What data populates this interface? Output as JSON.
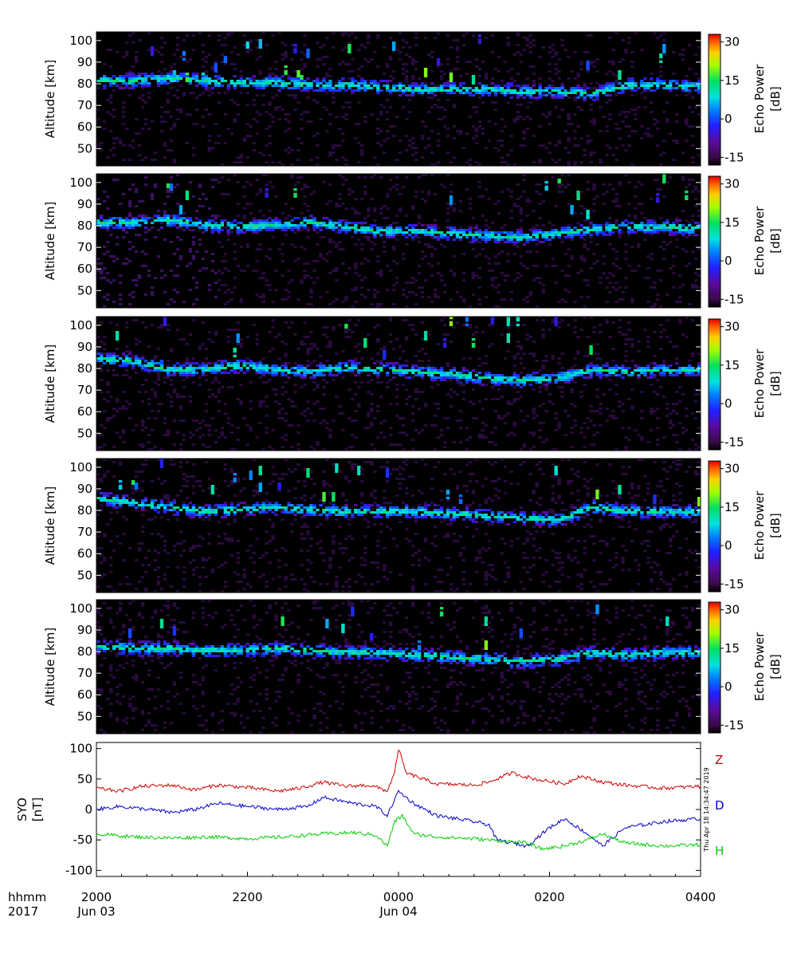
{
  "chart_data": [
    {
      "type": "heatmap",
      "ylabel": "Altitude [km]",
      "ylim": [
        42,
        104
      ],
      "yticks": [
        50,
        60,
        70,
        80,
        90,
        100
      ],
      "colorbar": {
        "label": "Echo Power [dB]",
        "range": [
          -18,
          33
        ],
        "ticks": [
          -15,
          0,
          15,
          30
        ]
      },
      "panels": 5,
      "echo_layer_km": [
        [
          82,
          82,
          83,
          82,
          81,
          81,
          80,
          80,
          79,
          78,
          78,
          78,
          77,
          77,
          76,
          80,
          80,
          79
        ],
        [
          82,
          82,
          83,
          81,
          80,
          81,
          82,
          80,
          78,
          78,
          77,
          76,
          75,
          77,
          79,
          80,
          80,
          79
        ],
        [
          85,
          84,
          80,
          80,
          82,
          80,
          79,
          81,
          80,
          79,
          78,
          76,
          75,
          76,
          80,
          79,
          80,
          80
        ],
        [
          86,
          84,
          82,
          80,
          81,
          82,
          81,
          80,
          80,
          80,
          79,
          78,
          77,
          76,
          82,
          80,
          80,
          80
        ],
        [
          83,
          82,
          82,
          81,
          81,
          82,
          81,
          80,
          80,
          79,
          78,
          77,
          76,
          77,
          80,
          79,
          80,
          80
        ]
      ]
    },
    {
      "type": "line",
      "ylabel": "SYO [nT]",
      "ylim": [
        -110,
        110
      ],
      "yticks": [
        -100,
        -50,
        0,
        50,
        100
      ],
      "series": [
        {
          "name": "Z",
          "color": "#cc0000",
          "x_hours": [
            20.0,
            20.3,
            20.6,
            21.0,
            21.3,
            21.6,
            22.0,
            22.4,
            22.7,
            23.0,
            23.3,
            23.6,
            23.75,
            23.85,
            23.95,
            24.0,
            24.1,
            24.5,
            25.0,
            25.2,
            25.5,
            25.8,
            26.2,
            26.4,
            26.7,
            27.0,
            27.5,
            28.0
          ],
          "values": [
            35,
            30,
            38,
            40,
            32,
            40,
            36,
            30,
            35,
            45,
            38,
            40,
            35,
            30,
            60,
            100,
            60,
            42,
            40,
            45,
            60,
            50,
            42,
            55,
            45,
            40,
            35,
            38
          ]
        },
        {
          "name": "D",
          "color": "#0000cc",
          "x_hours": [
            20.0,
            20.3,
            20.7,
            21.0,
            21.3,
            21.6,
            22.0,
            22.4,
            22.8,
            23.0,
            23.4,
            23.7,
            23.85,
            24.0,
            24.2,
            24.5,
            25.0,
            25.2,
            25.3,
            25.5,
            25.7,
            26.0,
            26.2,
            26.5,
            26.7,
            27.0,
            27.5,
            28.0
          ],
          "values": [
            0,
            5,
            0,
            -5,
            0,
            10,
            5,
            0,
            5,
            20,
            10,
            5,
            -10,
            30,
            10,
            -10,
            -20,
            -25,
            -50,
            -55,
            -60,
            -30,
            -15,
            -40,
            -60,
            -30,
            -20,
            -15
          ]
        },
        {
          "name": "H",
          "color": "#00cc00",
          "x_hours": [
            20.0,
            20.5,
            21.0,
            21.5,
            22.0,
            22.5,
            23.0,
            23.4,
            23.7,
            23.85,
            23.95,
            24.05,
            24.2,
            24.5,
            25.0,
            25.4,
            25.7,
            25.9,
            26.2,
            26.5,
            26.7,
            27.0,
            27.5,
            28.0
          ],
          "values": [
            -40,
            -45,
            -47,
            -45,
            -48,
            -45,
            -40,
            -38,
            -42,
            -60,
            -20,
            -10,
            -40,
            -45,
            -48,
            -52,
            -55,
            -65,
            -60,
            -50,
            -40,
            -55,
            -60,
            -58
          ]
        }
      ]
    }
  ],
  "time_axis": {
    "row_label_top": "hhmm",
    "row_label_bottom": "2017",
    "range_hours": [
      20,
      28
    ],
    "ticks": [
      {
        "hour": 20,
        "label": "2000",
        "date": "Jun 03"
      },
      {
        "hour": 22,
        "label": "2200",
        "date": ""
      },
      {
        "hour": 24,
        "label": "0000",
        "date": "Jun 04"
      },
      {
        "hour": 26,
        "label": "0200",
        "date": ""
      },
      {
        "hour": 28,
        "label": "0400",
        "date": ""
      }
    ]
  },
  "timestamp": "Thu Apr 18 14:34:47 2019"
}
